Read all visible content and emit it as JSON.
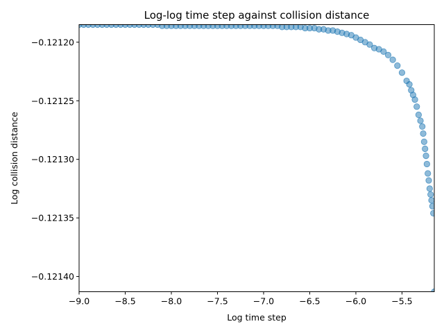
{
  "chart_data": {
    "type": "scatter",
    "title": "Log-log time step against collision distance",
    "xlabel": "Log time step",
    "ylabel": "Log collision distance",
    "xlim": [
      -9.0,
      -5.15
    ],
    "ylim": [
      -0.121413,
      -0.121185
    ],
    "xticks": [
      -9.0,
      -8.5,
      -8.0,
      -7.5,
      -7.0,
      -6.5,
      -6.0,
      -5.5
    ],
    "xtick_labels": [
      "−9.0",
      "−8.5",
      "−8.0",
      "−7.5",
      "−7.0",
      "−6.5",
      "−6.0",
      "−5.5"
    ],
    "yticks": [
      -0.1212,
      -0.12125,
      -0.1213,
      -0.12135,
      -0.1214
    ],
    "ytick_labels": [
      "−0.12120",
      "−0.12125",
      "−0.12130",
      "−0.12135",
      "−0.12140"
    ],
    "grid": false,
    "marker_color": "#1f77b4",
    "marker_alpha": 0.5,
    "points": [
      [
        -9.0,
        -0.121185
      ],
      [
        -8.95,
        -0.121185
      ],
      [
        -8.9,
        -0.121185
      ],
      [
        -8.85,
        -0.121185
      ],
      [
        -8.8,
        -0.121185
      ],
      [
        -8.75,
        -0.121185
      ],
      [
        -8.7,
        -0.121185
      ],
      [
        -8.65,
        -0.121185
      ],
      [
        -8.6,
        -0.121185
      ],
      [
        -8.55,
        -0.121185
      ],
      [
        -8.5,
        -0.121185
      ],
      [
        -8.45,
        -0.121185
      ],
      [
        -8.4,
        -0.121185
      ],
      [
        -8.35,
        -0.121185
      ],
      [
        -8.3,
        -0.121185
      ],
      [
        -8.25,
        -0.121185
      ],
      [
        -8.2,
        -0.121185
      ],
      [
        -8.15,
        -0.121185
      ],
      [
        -8.1,
        -0.121186
      ],
      [
        -8.05,
        -0.121186
      ],
      [
        -8.0,
        -0.121186
      ],
      [
        -7.95,
        -0.121186
      ],
      [
        -7.9,
        -0.121186
      ],
      [
        -7.85,
        -0.121186
      ],
      [
        -7.8,
        -0.121186
      ],
      [
        -7.75,
        -0.121186
      ],
      [
        -7.7,
        -0.121186
      ],
      [
        -7.65,
        -0.121186
      ],
      [
        -7.6,
        -0.121186
      ],
      [
        -7.55,
        -0.121186
      ],
      [
        -7.5,
        -0.121186
      ],
      [
        -7.45,
        -0.121186
      ],
      [
        -7.4,
        -0.121186
      ],
      [
        -7.35,
        -0.121186
      ],
      [
        -7.3,
        -0.121186
      ],
      [
        -7.25,
        -0.121186
      ],
      [
        -7.2,
        -0.121186
      ],
      [
        -7.15,
        -0.121186
      ],
      [
        -7.1,
        -0.121186
      ],
      [
        -7.05,
        -0.121186
      ],
      [
        -7.0,
        -0.121186
      ],
      [
        -6.95,
        -0.121186
      ],
      [
        -6.9,
        -0.121186
      ],
      [
        -6.85,
        -0.121186
      ],
      [
        -6.8,
        -0.121187
      ],
      [
        -6.75,
        -0.121187
      ],
      [
        -6.7,
        -0.121187
      ],
      [
        -6.65,
        -0.121187
      ],
      [
        -6.6,
        -0.121187
      ],
      [
        -6.55,
        -0.121188
      ],
      [
        -6.5,
        -0.121188
      ],
      [
        -6.45,
        -0.121188
      ],
      [
        -6.4,
        -0.121189
      ],
      [
        -6.35,
        -0.121189
      ],
      [
        -6.3,
        -0.12119
      ],
      [
        -6.25,
        -0.12119
      ],
      [
        -6.2,
        -0.121191
      ],
      [
        -6.15,
        -0.121192
      ],
      [
        -6.1,
        -0.121193
      ],
      [
        -6.05,
        -0.121194
      ],
      [
        -6.0,
        -0.121196
      ],
      [
        -5.95,
        -0.121198
      ],
      [
        -5.9,
        -0.1212
      ],
      [
        -5.85,
        -0.121202
      ],
      [
        -5.8,
        -0.121205
      ],
      [
        -5.75,
        -0.121206
      ],
      [
        -5.7,
        -0.121208
      ],
      [
        -5.65,
        -0.121211
      ],
      [
        -5.6,
        -0.121215
      ],
      [
        -5.55,
        -0.12122
      ],
      [
        -5.5,
        -0.121226
      ],
      [
        -5.45,
        -0.121233
      ],
      [
        -5.42,
        -0.121236
      ],
      [
        -5.4,
        -0.121241
      ],
      [
        -5.38,
        -0.121245
      ],
      [
        -5.36,
        -0.121249
      ],
      [
        -5.34,
        -0.121255
      ],
      [
        -5.32,
        -0.121262
      ],
      [
        -5.3,
        -0.121267
      ],
      [
        -5.28,
        -0.121272
      ],
      [
        -5.27,
        -0.121278
      ],
      [
        -5.26,
        -0.121285
      ],
      [
        -5.25,
        -0.121291
      ],
      [
        -5.24,
        -0.121297
      ],
      [
        -5.23,
        -0.121304
      ],
      [
        -5.22,
        -0.121312
      ],
      [
        -5.21,
        -0.121318
      ],
      [
        -5.2,
        -0.121325
      ],
      [
        -5.19,
        -0.12133
      ],
      [
        -5.18,
        -0.121335
      ],
      [
        -5.17,
        -0.12134
      ],
      [
        -5.16,
        -0.121346
      ],
      [
        -5.15,
        -0.121413
      ]
    ]
  }
}
